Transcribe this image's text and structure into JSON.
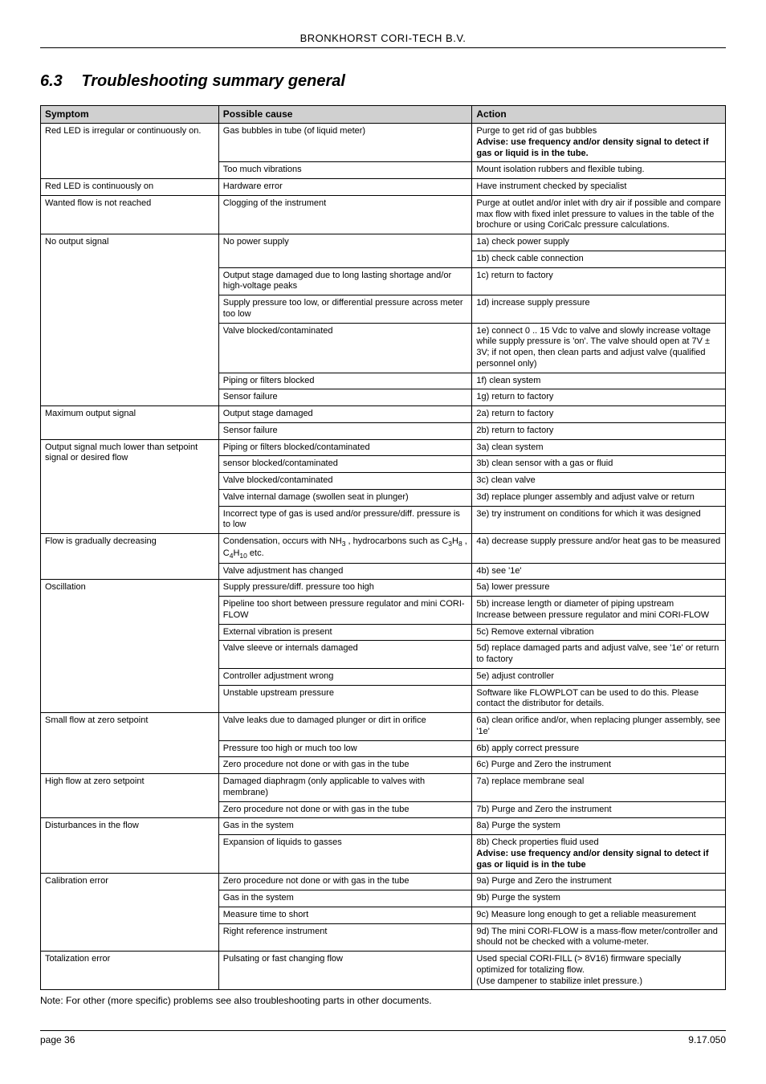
{
  "header": {
    "company": "BRONKHORST CORI-TECH B.V."
  },
  "section": {
    "number": "6.3",
    "title": "Troubleshooting summary general"
  },
  "table": {
    "headers": {
      "symptom": "Symptom",
      "cause": "Possible cause",
      "action": "Action"
    },
    "rows": [
      {
        "symptom": "Red LED is irregular or continuously on.",
        "items": [
          {
            "cause": "Gas bubbles in tube (of liquid meter)",
            "actions": [
              "Purge to get rid of gas bubbles\n<b>Advise: use frequency and/or density signal to detect if gas or liquid is in the tube.</b>"
            ]
          },
          {
            "cause": "Too much vibrations",
            "actions": [
              "Mount isolation rubbers and flexible tubing."
            ]
          }
        ]
      },
      {
        "symptom": "Red LED is continuously on",
        "items": [
          {
            "cause": "Hardware error",
            "actions": [
              "Have instrument checked by specialist"
            ]
          }
        ]
      },
      {
        "symptom": "Wanted flow is not reached",
        "items": [
          {
            "cause": "Clogging of the instrument",
            "actions": [
              "Purge at outlet and/or inlet with dry air if possible and compare max flow with fixed inlet pressure to values in the table of the brochure or using CoriCalc pressure calculations."
            ]
          }
        ]
      },
      {
        "symptom": "No output signal",
        "items": [
          {
            "cause": "No power supply",
            "actions": [
              "1a) check power supply",
              "1b) check cable connection"
            ]
          },
          {
            "cause": "Output stage damaged due to long lasting shortage and/or high-voltage peaks",
            "actions": [
              "1c) return to factory"
            ]
          },
          {
            "cause": "Supply pressure too low, or differential pressure across meter too low",
            "actions": [
              "1d) increase supply pressure"
            ]
          },
          {
            "cause": "Valve blocked/contaminated",
            "actions": [
              "1e) connect 0 .. 15 Vdc to valve and slowly increase voltage while supply pressure is 'on'. The valve should open at 7V ± 3V; if not open, then clean parts and adjust valve (qualified personnel only)"
            ]
          },
          {
            "cause": "Piping or filters blocked",
            "actions": [
              "1f) clean system"
            ]
          },
          {
            "cause": "Sensor failure",
            "actions": [
              "1g) return to factory"
            ]
          }
        ]
      },
      {
        "symptom": "Maximum output signal",
        "items": [
          {
            "cause": "Output stage damaged",
            "actions": [
              "2a) return to factory"
            ]
          },
          {
            "cause": "Sensor failure",
            "actions": [
              "2b) return to factory"
            ]
          }
        ]
      },
      {
        "symptom": "Output signal much lower than setpoint signal or desired flow",
        "items": [
          {
            "cause": "Piping or filters blocked/contaminated",
            "actions": [
              "3a) clean system"
            ]
          },
          {
            "cause": "sensor blocked/contaminated",
            "actions": [
              "3b) clean sensor with a gas or fluid"
            ]
          },
          {
            "cause": "Valve blocked/contaminated",
            "actions": [
              "3c) clean valve"
            ]
          },
          {
            "cause": "Valve internal damage (swollen seat in plunger)",
            "actions": [
              "3d) replace plunger assembly and adjust valve or return"
            ]
          },
          {
            "cause": "Incorrect type of gas is used and/or pressure/diff. pressure is to low",
            "actions": [
              "3e) try instrument on conditions for which it was designed"
            ]
          }
        ]
      },
      {
        "symptom": "Flow is gradually decreasing",
        "items": [
          {
            "cause": "Condensation, occurs with NH<span class=\"sub\">3</span> , hydrocarbons such as  C<span class=\"sub\">3</span>H<span class=\"sub\">8</span> , C<span class=\"sub\">4</span>H<span class=\"sub\">10</span> etc.",
            "actions": [
              "4a) decrease supply pressure and/or heat gas to be measured"
            ]
          },
          {
            "cause": "Valve adjustment has changed",
            "actions": [
              "4b) see '1e'"
            ]
          }
        ]
      },
      {
        "symptom": "Oscillation",
        "items": [
          {
            "cause": "Supply pressure/diff. pressure too high",
            "actions": [
              "5a) lower pressure"
            ]
          },
          {
            "cause": "Pipeline too short between pressure regulator and mini CORI-FLOW",
            "actions": [
              "5b) increase length or diameter of piping upstream\nIncrease between pressure regulator and mini CORI-FLOW"
            ]
          },
          {
            "cause": "External vibration is present",
            "actions": [
              "5c) Remove external vibration"
            ]
          },
          {
            "cause": "Valve sleeve or internals damaged",
            "actions": [
              "5d) replace damaged parts and adjust valve, see '1e' or return to factory"
            ]
          },
          {
            "cause": "Controller adjustment wrong",
            "actions": [
              "5e) adjust controller"
            ]
          },
          {
            "cause": "Unstable upstream pressure",
            "actions": [
              "Software like FLOWPLOT can be used to do this. Please contact the distributor for details."
            ]
          }
        ]
      },
      {
        "symptom": "Small flow at zero setpoint",
        "items": [
          {
            "cause": "Valve leaks due to damaged plunger or dirt in orifice",
            "actions": [
              "6a) clean orifice and/or, when replacing plunger assembly, see '1e'"
            ]
          },
          {
            "cause": "Pressure too high or much too low",
            "actions": [
              "6b) apply correct pressure"
            ]
          },
          {
            "cause": "Zero procedure not done or with gas in the tube",
            "actions": [
              "6c) Purge and Zero the instrument"
            ]
          }
        ]
      },
      {
        "symptom": "High flow at zero setpoint",
        "items": [
          {
            "cause": "Damaged diaphragm (only applicable to valves with membrane)",
            "actions": [
              "7a) replace membrane seal"
            ]
          },
          {
            "cause": "Zero procedure not done or with gas in the tube",
            "actions": [
              "7b) Purge and Zero the instrument"
            ]
          }
        ]
      },
      {
        "symptom": "Disturbances in the flow",
        "items": [
          {
            "cause": "Gas in the system",
            "actions": [
              "8a) Purge the system"
            ]
          },
          {
            "cause": "Expansion of liquids to gasses",
            "actions": [
              "8b) Check properties fluid used\n<b>Advise: use frequency and/or density signal to detect if gas or liquid is in the tube</b>"
            ]
          }
        ]
      },
      {
        "symptom": "Calibration error",
        "items": [
          {
            "cause": "Zero procedure not done or with gas in the tube",
            "actions": [
              "9a) Purge and Zero the instrument"
            ]
          },
          {
            "cause": "Gas in the system",
            "actions": [
              "9b) Purge the system"
            ]
          },
          {
            "cause": "Measure time to short",
            "actions": [
              "9c) Measure long enough to get a reliable measurement"
            ]
          },
          {
            "cause": "Right  reference instrument",
            "actions": [
              "9d) The mini CORI-FLOW is a mass-flow meter/controller and should not be checked with a volume-meter."
            ]
          }
        ]
      },
      {
        "symptom": "Totalization error",
        "items": [
          {
            "cause": "Pulsating or fast changing flow",
            "actions": [
              "Used special CORI-FILL (> 8V16) firmware specially optimized for totalizing flow.\n(Use dampener to stabilize inlet pressure.)"
            ]
          }
        ]
      }
    ]
  },
  "note": "Note: For other (more specific) problems see also troubleshooting parts in other documents.",
  "footer": {
    "left": "page 36",
    "right": "9.17.050"
  }
}
